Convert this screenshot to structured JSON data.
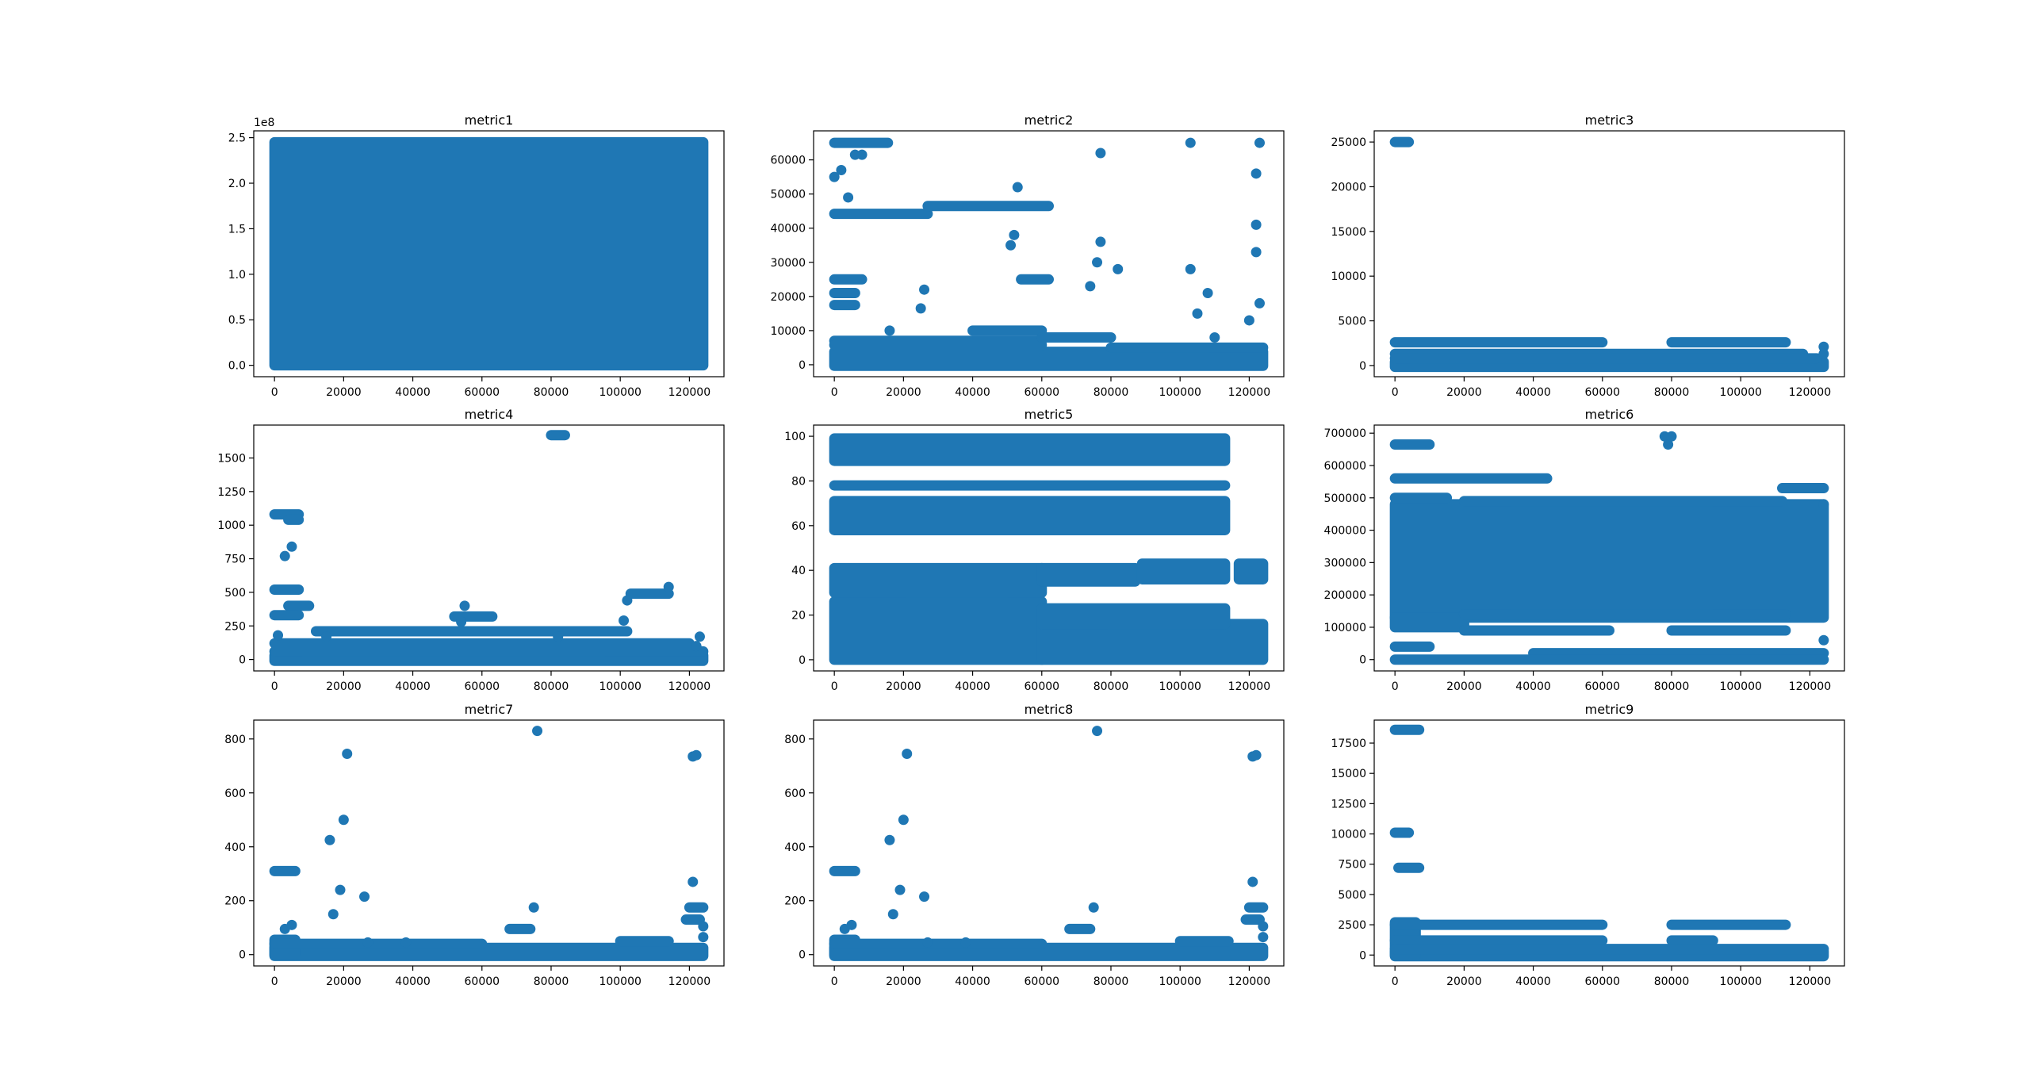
{
  "figure": {
    "layout": "3x3 grid of scatter plots",
    "point_color": "#1f77b4",
    "axes_color": "#000000",
    "background": "#ffffff"
  },
  "chart_data": [
    {
      "type": "scatter",
      "title": "metric1",
      "xlabel": "",
      "ylabel": "",
      "xlim": [
        -6000,
        130000
      ],
      "ylim": [
        -12500000,
        257500000
      ],
      "xticks": [
        0,
        20000,
        40000,
        60000,
        80000,
        100000,
        120000
      ],
      "yticks": [
        0,
        50000000,
        100000000,
        150000000,
        200000000,
        250000000
      ],
      "ytick_labels": [
        "0.0",
        "0.5",
        "1.0",
        "1.5",
        "2.0",
        "2.5"
      ],
      "y_offset_label": "1e8",
      "fills": [
        {
          "x": [
            0,
            124000
          ],
          "y": [
            0,
            245000000
          ]
        }
      ],
      "segments": [],
      "points": []
    },
    {
      "type": "scatter",
      "title": "metric2",
      "xlabel": "",
      "ylabel": "",
      "xlim": [
        -6000,
        130000
      ],
      "ylim": [
        -3500,
        68500
      ],
      "xticks": [
        0,
        20000,
        40000,
        60000,
        80000,
        100000,
        120000
      ],
      "yticks": [
        0,
        10000,
        20000,
        30000,
        40000,
        50000,
        60000
      ],
      "fills": [
        {
          "x": [
            0,
            124000
          ],
          "y": [
            -300,
            3800
          ]
        }
      ],
      "segments": [
        {
          "x": [
            0,
            15500
          ],
          "y": 65000
        },
        {
          "x": [
            0,
            27000
          ],
          "y": 44200
        },
        {
          "x": [
            27000,
            62000
          ],
          "y": 46500
        },
        {
          "x": [
            0,
            8000
          ],
          "y": 25000
        },
        {
          "x": [
            0,
            6000
          ],
          "y": 21000
        },
        {
          "x": [
            0,
            6000
          ],
          "y": 17500
        },
        {
          "x": [
            0,
            60000
          ],
          "y": 7000
        },
        {
          "x": [
            0,
            60000
          ],
          "y": 5800
        },
        {
          "x": [
            40000,
            60000
          ],
          "y": 10000
        },
        {
          "x": [
            60000,
            80000
          ],
          "y": 8000
        },
        {
          "x": [
            80000,
            124000
          ],
          "y": 5000
        },
        {
          "x": [
            54000,
            62000
          ],
          "y": 25000
        }
      ],
      "points": [
        [
          0,
          55000
        ],
        [
          2000,
          57000
        ],
        [
          4000,
          49000
        ],
        [
          6000,
          61500
        ],
        [
          8000,
          61500
        ],
        [
          16000,
          10000
        ],
        [
          25000,
          16500
        ],
        [
          26000,
          22000
        ],
        [
          53000,
          52000
        ],
        [
          52000,
          38000
        ],
        [
          51000,
          35000
        ],
        [
          74000,
          23000
        ],
        [
          76000,
          30000
        ],
        [
          77000,
          36000
        ],
        [
          77000,
          62000
        ],
        [
          82000,
          28000
        ],
        [
          103000,
          65000
        ],
        [
          103000,
          28000
        ],
        [
          105000,
          15000
        ],
        [
          108000,
          21000
        ],
        [
          110000,
          8000
        ],
        [
          122000,
          56000
        ],
        [
          122000,
          41000
        ],
        [
          122000,
          33000
        ],
        [
          123000,
          18000
        ],
        [
          123000,
          65000
        ],
        [
          120000,
          13000
        ]
      ]
    },
    {
      "type": "scatter",
      "title": "metric3",
      "xlabel": "",
      "ylabel": "",
      "xlim": [
        -6000,
        130000
      ],
      "ylim": [
        -1250,
        26250
      ],
      "xticks": [
        0,
        20000,
        40000,
        60000,
        80000,
        100000,
        120000
      ],
      "yticks": [
        0,
        5000,
        10000,
        15000,
        20000,
        25000
      ],
      "fills": [
        {
          "x": [
            0,
            124000
          ],
          "y": [
            -150,
            400
          ]
        }
      ],
      "segments": [
        {
          "x": [
            0,
            4000
          ],
          "y": 25000
        },
        {
          "x": [
            0,
            60000
          ],
          "y": 2600
        },
        {
          "x": [
            80000,
            113000
          ],
          "y": 2600
        },
        {
          "x": [
            0,
            118000
          ],
          "y": 1300
        },
        {
          "x": [
            0,
            122000
          ],
          "y": 800
        }
      ],
      "points": [
        [
          124000,
          2100
        ],
        [
          124000,
          1300
        ]
      ]
    },
    {
      "type": "scatter",
      "title": "metric4",
      "xlabel": "",
      "ylabel": "",
      "xlim": [
        -6000,
        130000
      ],
      "ylim": [
        -85,
        1745
      ],
      "xticks": [
        0,
        20000,
        40000,
        60000,
        80000,
        100000,
        120000
      ],
      "yticks": [
        0,
        250,
        500,
        750,
        1000,
        1250,
        1500
      ],
      "fills": [
        {
          "x": [
            0,
            124000
          ],
          "y": [
            -10,
            30
          ]
        }
      ],
      "segments": [
        {
          "x": [
            80000,
            84000
          ],
          "y": 1670
        },
        {
          "x": [
            0,
            7000
          ],
          "y": 1080
        },
        {
          "x": [
            4000,
            7000
          ],
          "y": 1040
        },
        {
          "x": [
            0,
            7000
          ],
          "y": 520
        },
        {
          "x": [
            4000,
            10000
          ],
          "y": 400
        },
        {
          "x": [
            0,
            7000
          ],
          "y": 330
        },
        {
          "x": [
            0,
            120000
          ],
          "y": 120
        },
        {
          "x": [
            12000,
            102000
          ],
          "y": 210
        },
        {
          "x": [
            52000,
            63000
          ],
          "y": 320
        },
        {
          "x": [
            103000,
            114000
          ],
          "y": 490
        },
        {
          "x": [
            0,
            124000
          ],
          "y": 60
        }
      ],
      "points": [
        [
          3000,
          770
        ],
        [
          5000,
          840
        ],
        [
          1000,
          180
        ],
        [
          15000,
          170
        ],
        [
          55000,
          400
        ],
        [
          54000,
          280
        ],
        [
          82000,
          170
        ],
        [
          101000,
          290
        ],
        [
          102000,
          440
        ],
        [
          114000,
          540
        ],
        [
          123000,
          170
        ],
        [
          122000,
          100
        ]
      ]
    },
    {
      "type": "scatter",
      "title": "metric5",
      "xlabel": "",
      "ylabel": "",
      "xlim": [
        -6000,
        130000
      ],
      "ylim": [
        -5,
        105
      ],
      "xticks": [
        0,
        20000,
        40000,
        60000,
        80000,
        100000,
        120000
      ],
      "yticks": [
        0,
        20,
        40,
        60,
        80,
        100
      ],
      "fills": [
        {
          "x": [
            0,
            113000
          ],
          "y": [
            89,
            99
          ]
        },
        {
          "x": [
            0,
            113000
          ],
          "y": [
            58,
            71
          ]
        },
        {
          "x": [
            0,
            60000
          ],
          "y": [
            0,
            26
          ]
        },
        {
          "x": [
            0,
            60000
          ],
          "y": [
            30,
            41
          ]
        },
        {
          "x": [
            60000,
            124000
          ],
          "y": [
            0,
            16
          ]
        },
        {
          "x": [
            60000,
            113000
          ],
          "y": [
            16,
            23
          ]
        },
        {
          "x": [
            60000,
            87000
          ],
          "y": [
            35,
            41
          ]
        },
        {
          "x": [
            89000,
            113000
          ],
          "y": [
            36,
            43
          ]
        },
        {
          "x": [
            117000,
            124000
          ],
          "y": [
            36,
            43
          ]
        }
      ],
      "segments": [
        {
          "x": [
            0,
            113000
          ],
          "y": 78
        }
      ],
      "points": []
    },
    {
      "type": "scatter",
      "title": "metric6",
      "xlabel": "",
      "ylabel": "",
      "xlim": [
        -6000,
        130000
      ],
      "ylim": [
        -35000,
        725000
      ],
      "xticks": [
        0,
        20000,
        40000,
        60000,
        80000,
        100000,
        120000
      ],
      "yticks": [
        0,
        100000,
        200000,
        300000,
        400000,
        500000,
        600000,
        700000
      ],
      "fills": [
        {
          "x": [
            0,
            124000
          ],
          "y": [
            130000,
            480000
          ]
        },
        {
          "x": [
            0,
            20000
          ],
          "y": [
            100000,
            130000
          ]
        }
      ],
      "segments": [
        {
          "x": [
            0,
            10000
          ],
          "y": 665000
        },
        {
          "x": [
            0,
            44000
          ],
          "y": 560000
        },
        {
          "x": [
            0,
            15000
          ],
          "y": 500000
        },
        {
          "x": [
            20000,
            112000
          ],
          "y": 490000
        },
        {
          "x": [
            112000,
            124000
          ],
          "y": 530000
        },
        {
          "x": [
            40000,
            124000
          ],
          "y": 20000
        },
        {
          "x": [
            0,
            124000
          ],
          "y": 0
        },
        {
          "x": [
            0,
            10000
          ],
          "y": 40000
        },
        {
          "x": [
            80000,
            113000
          ],
          "y": 90000
        },
        {
          "x": [
            20000,
            62000
          ],
          "y": 90000
        },
        {
          "x": [
            20000,
            113000
          ],
          "y": 140000
        }
      ],
      "points": [
        [
          78000,
          690000
        ],
        [
          79000,
          665000
        ],
        [
          80000,
          690000
        ],
        [
          124000,
          60000
        ],
        [
          124000,
          480000
        ]
      ]
    },
    {
      "type": "scatter",
      "title": "metric7",
      "xlabel": "",
      "ylabel": "",
      "xlim": [
        -6000,
        130000
      ],
      "ylim": [
        -42,
        870
      ],
      "xticks": [
        0,
        20000,
        40000,
        60000,
        80000,
        100000,
        120000
      ],
      "yticks": [
        0,
        200,
        400,
        600,
        800
      ],
      "fills": [
        {
          "x": [
            0,
            124000
          ],
          "y": [
            -5,
            25
          ]
        },
        {
          "x": [
            0,
            6000
          ],
          "y": [
            0,
            55
          ]
        }
      ],
      "segments": [
        {
          "x": [
            0,
            6000
          ],
          "y": 310
        },
        {
          "x": [
            0,
            60000
          ],
          "y": 40
        },
        {
          "x": [
            100000,
            114000
          ],
          "y": 50
        },
        {
          "x": [
            120000,
            124000
          ],
          "y": 175
        },
        {
          "x": [
            119000,
            123000
          ],
          "y": 130
        },
        {
          "x": [
            68000,
            74000
          ],
          "y": 95
        }
      ],
      "points": [
        [
          3000,
          95
        ],
        [
          5000,
          110
        ],
        [
          16000,
          425
        ],
        [
          17000,
          150
        ],
        [
          19000,
          240
        ],
        [
          20000,
          500
        ],
        [
          21000,
          745
        ],
        [
          26000,
          215
        ],
        [
          27000,
          45
        ],
        [
          38000,
          45
        ],
        [
          75000,
          175
        ],
        [
          76000,
          830
        ],
        [
          121000,
          270
        ],
        [
          121000,
          735
        ],
        [
          122000,
          740
        ],
        [
          124000,
          105
        ],
        [
          124000,
          65
        ]
      ]
    },
    {
      "type": "scatter",
      "title": "metric8",
      "xlabel": "",
      "ylabel": "",
      "xlim": [
        -6000,
        130000
      ],
      "ylim": [
        -42,
        870
      ],
      "xticks": [
        0,
        20000,
        40000,
        60000,
        80000,
        100000,
        120000
      ],
      "yticks": [
        0,
        200,
        400,
        600,
        800
      ],
      "fills": [
        {
          "x": [
            0,
            124000
          ],
          "y": [
            -5,
            25
          ]
        },
        {
          "x": [
            0,
            6000
          ],
          "y": [
            0,
            55
          ]
        }
      ],
      "segments": [
        {
          "x": [
            0,
            6000
          ],
          "y": 310
        },
        {
          "x": [
            0,
            60000
          ],
          "y": 40
        },
        {
          "x": [
            100000,
            114000
          ],
          "y": 50
        },
        {
          "x": [
            120000,
            124000
          ],
          "y": 175
        },
        {
          "x": [
            119000,
            123000
          ],
          "y": 130
        },
        {
          "x": [
            68000,
            74000
          ],
          "y": 95
        }
      ],
      "points": [
        [
          3000,
          95
        ],
        [
          5000,
          110
        ],
        [
          16000,
          425
        ],
        [
          17000,
          150
        ],
        [
          19000,
          240
        ],
        [
          20000,
          500
        ],
        [
          21000,
          745
        ],
        [
          26000,
          215
        ],
        [
          27000,
          45
        ],
        [
          38000,
          45
        ],
        [
          75000,
          175
        ],
        [
          76000,
          830
        ],
        [
          121000,
          270
        ],
        [
          121000,
          735
        ],
        [
          122000,
          740
        ],
        [
          124000,
          105
        ],
        [
          124000,
          65
        ]
      ]
    },
    {
      "type": "scatter",
      "title": "metric9",
      "xlabel": "",
      "ylabel": "",
      "xlim": [
        -6000,
        130000
      ],
      "ylim": [
        -900,
        19400
      ],
      "xticks": [
        0,
        20000,
        40000,
        60000,
        80000,
        100000,
        120000
      ],
      "yticks": [
        0,
        2500,
        5000,
        7500,
        10000,
        12500,
        15000,
        17500
      ],
      "fills": [
        {
          "x": [
            0,
            124000
          ],
          "y": [
            -100,
            300
          ]
        },
        {
          "x": [
            0,
            6000
          ],
          "y": [
            0,
            2700
          ]
        }
      ],
      "segments": [
        {
          "x": [
            0,
            7000
          ],
          "y": 18600
        },
        {
          "x": [
            0,
            4000
          ],
          "y": 10100
        },
        {
          "x": [
            1000,
            7000
          ],
          "y": 7200
        },
        {
          "x": [
            0,
            60000
          ],
          "y": 2500
        },
        {
          "x": [
            80000,
            113000
          ],
          "y": 2500
        },
        {
          "x": [
            0,
            60000
          ],
          "y": 1200
        },
        {
          "x": [
            80000,
            92000
          ],
          "y": 1200
        },
        {
          "x": [
            0,
            124000
          ],
          "y": 500
        }
      ],
      "points": []
    }
  ]
}
